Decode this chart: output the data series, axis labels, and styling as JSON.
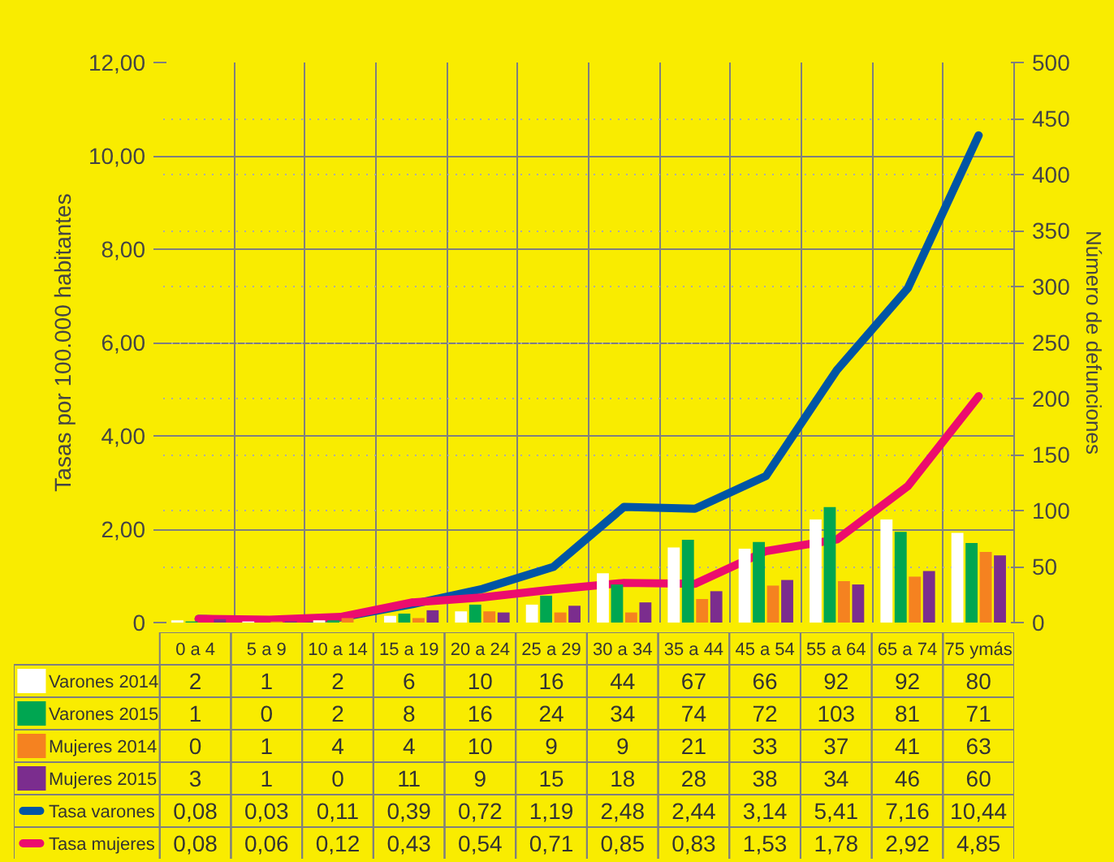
{
  "chart_data": {
    "type": "bar",
    "categories": [
      "0 a 4",
      "5 a 9",
      "10 a 14",
      "15 a 19",
      "20 a 24",
      "25 a 29",
      "30 a 34",
      "35 a 44",
      "45 a 54",
      "55 a 64",
      "65 a 74",
      "75 ymás"
    ],
    "ylabel": "Tasas por 100.000 habitantes",
    "y2label": "Número de defunciones",
    "ylim": [
      0,
      12
    ],
    "yticks": [
      0,
      {
        "value": 2,
        "label": "2,00"
      },
      {
        "value": 4,
        "label": "4,00"
      },
      {
        "value": 6,
        "label": "6,00"
      },
      {
        "value": 8,
        "label": "8,00"
      },
      {
        "value": 10,
        "label": "10,00"
      },
      {
        "value": 12,
        "label": "12,00"
      }
    ],
    "y2lim": [
      0,
      500
    ],
    "y2ticks": [
      0,
      50,
      100,
      150,
      200,
      250,
      300,
      350,
      400,
      450,
      500
    ],
    "grid": true,
    "legend": "bottom",
    "series": [
      {
        "name": "Varones 2014",
        "axis": "y2",
        "color": "#ffffff",
        "values": [
          2,
          1,
          2,
          6,
          10,
          16,
          44,
          67,
          66,
          92,
          92,
          80
        ],
        "value_labels": [
          "2",
          "1",
          "2",
          "6",
          "10",
          "16",
          "44",
          "67",
          "66",
          "92",
          "92",
          "80"
        ]
      },
      {
        "name": "Varones 2015",
        "axis": "y2",
        "color": "#00a651",
        "values": [
          1,
          0,
          2,
          8,
          16,
          24,
          34,
          74,
          72,
          103,
          81,
          71
        ],
        "value_labels": [
          "1",
          "0",
          "2",
          "8",
          "16",
          "24",
          "34",
          "74",
          "72",
          "103",
          "81",
          "71"
        ]
      },
      {
        "name": "Mujeres 2014",
        "axis": "y2",
        "color": "#f58220",
        "values": [
          0,
          1,
          4,
          4,
          10,
          9,
          9,
          21,
          33,
          37,
          41,
          63
        ],
        "value_labels": [
          "0",
          "1",
          "4",
          "4",
          "10",
          "9",
          "9",
          "21",
          "33",
          "37",
          "41",
          "63"
        ]
      },
      {
        "name": "Mujeres 2015",
        "axis": "y2",
        "color": "#7b2d8e",
        "values": [
          3,
          1,
          0,
          11,
          9,
          15,
          18,
          28,
          38,
          34,
          46,
          60
        ],
        "value_labels": [
          "3",
          "1",
          "0",
          "11",
          "9",
          "15",
          "18",
          "28",
          "38",
          "34",
          "46",
          "60"
        ]
      },
      {
        "name": "Tasa varones",
        "type": "line",
        "axis": "y",
        "color": "#0055a5",
        "values": [
          0.08,
          0.03,
          0.11,
          0.39,
          0.72,
          1.19,
          2.48,
          2.44,
          3.14,
          5.41,
          7.16,
          10.44
        ],
        "value_labels": [
          "0,08",
          "0,03",
          "0,11",
          "0,39",
          "0,72",
          "1,19",
          "2,48",
          "2,44",
          "3,14",
          "5,41",
          "7,16",
          "10,44"
        ]
      },
      {
        "name": "Tasa mujeres",
        "type": "line",
        "axis": "y",
        "color": "#ec0c6e",
        "values": [
          0.08,
          0.06,
          0.12,
          0.43,
          0.54,
          0.71,
          0.85,
          0.83,
          1.53,
          1.78,
          2.92,
          4.85
        ],
        "value_labels": [
          "0,08",
          "0,06",
          "0,12",
          "0,43",
          "0,54",
          "0,71",
          "0,85",
          "0,83",
          "1,53",
          "1,78",
          "2,92",
          "4,85"
        ]
      }
    ]
  }
}
